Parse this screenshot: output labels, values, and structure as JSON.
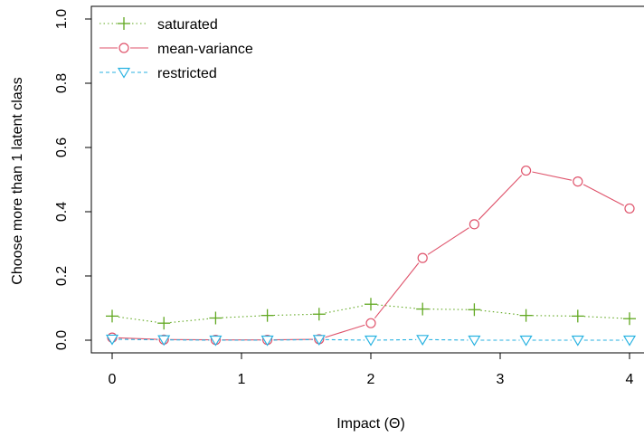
{
  "chart_data": {
    "type": "line",
    "xlabel": "Impact (Θ)",
    "ylabel": "Choose more than 1 latent class",
    "xlim": [
      0,
      4
    ],
    "ylim": [
      0,
      1
    ],
    "x_ticks": [
      "0",
      "1",
      "2",
      "3",
      "4"
    ],
    "y_ticks": [
      "0.0",
      "0.2",
      "0.4",
      "0.6",
      "0.8",
      "1.0"
    ],
    "x": [
      0,
      0.4,
      0.8,
      1.2,
      1.6,
      2.0,
      2.4,
      2.8,
      3.2,
      3.6,
      4.0
    ],
    "legend_position": "top-left",
    "grid": false,
    "series": [
      {
        "name": "saturated",
        "color": "#61a821",
        "marker": "plus",
        "line_style": "dotted",
        "values": [
          0.075,
          0.053,
          0.069,
          0.077,
          0.081,
          0.112,
          0.097,
          0.095,
          0.077,
          0.075,
          0.067
        ]
      },
      {
        "name": "mean-variance",
        "color": "#df536b",
        "marker": "circle",
        "line_style": "solid",
        "values": [
          0.008,
          0.002,
          0.001,
          0.001,
          0.003,
          0.053,
          0.256,
          0.361,
          0.528,
          0.494,
          0.41
        ]
      },
      {
        "name": "restricted",
        "color": "#28b2e1",
        "marker": "triangle-down",
        "line_style": "dashed",
        "values": [
          0.003,
          0.001,
          0.0,
          0.0,
          0.002,
          0.0,
          0.002,
          0.0,
          0.0,
          0.0,
          0.0
        ]
      }
    ]
  }
}
